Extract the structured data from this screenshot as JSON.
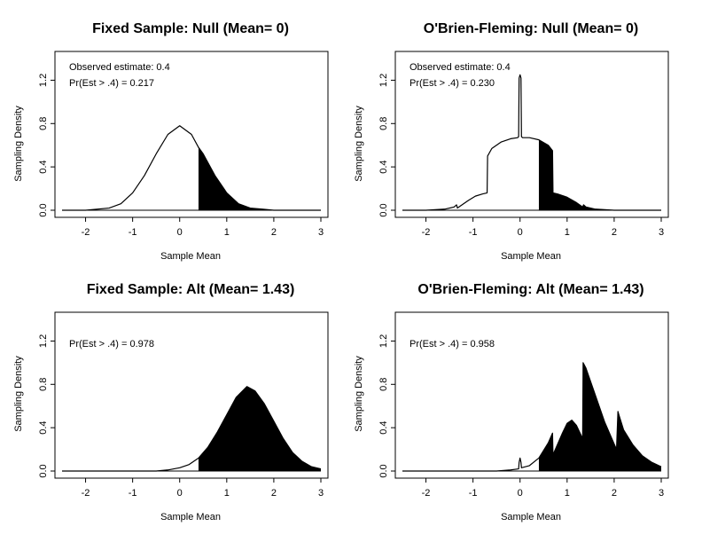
{
  "figure": {
    "background": "#ffffff",
    "ink": "#000000"
  },
  "chart_data": [
    {
      "type": "area",
      "title": "Fixed Sample: Null (Mean= 0)",
      "xlabel": "Sample Mean",
      "ylabel": "Sampling Density",
      "xlim": [
        -2.5,
        3
      ],
      "ylim": [
        0,
        1.4
      ],
      "xticks": [
        "-2",
        "-1",
        "0",
        "1",
        "2",
        "3"
      ],
      "xtick_values": [
        -2,
        -1,
        0,
        1,
        2,
        3
      ],
      "yticks": [
        "0.0",
        "0.4",
        "0.8",
        "1.2"
      ],
      "ytick_values": [
        0,
        0.4,
        0.8,
        1.2
      ],
      "annotations": [
        "Observed estimate: 0.4",
        "Pr(Est > .4) = 0.217"
      ],
      "shade_from": 0.4,
      "series": [
        {
          "name": "density",
          "x": [
            -2.5,
            -2.0,
            -1.5,
            -1.25,
            -1.0,
            -0.75,
            -0.5,
            -0.25,
            0,
            0.25,
            0.4,
            0.5,
            0.75,
            1.0,
            1.25,
            1.5,
            1.75,
            2.0,
            2.5,
            3.0
          ],
          "y": [
            0.0,
            0.0,
            0.02,
            0.06,
            0.16,
            0.32,
            0.52,
            0.7,
            0.78,
            0.7,
            0.58,
            0.52,
            0.32,
            0.16,
            0.06,
            0.02,
            0.01,
            0.0,
            0.0,
            0.0
          ]
        }
      ]
    },
    {
      "type": "area",
      "title": "O'Brien-Fleming: Null (Mean= 0)",
      "xlabel": "Sample Mean",
      "ylabel": "Sampling Density",
      "xlim": [
        -2.5,
        3
      ],
      "ylim": [
        0,
        1.4
      ],
      "xticks": [
        "-2",
        "-1",
        "0",
        "1",
        "2",
        "3"
      ],
      "xtick_values": [
        -2,
        -1,
        0,
        1,
        2,
        3
      ],
      "yticks": [
        "0.0",
        "0.4",
        "0.8",
        "1.2"
      ],
      "ytick_values": [
        0,
        0.4,
        0.8,
        1.2
      ],
      "annotations": [
        "Observed estimate: 0.4",
        "Pr(Est > .4) = 0.230"
      ],
      "shade_from": 0.4,
      "series": [
        {
          "name": "density",
          "x": [
            -2.5,
            -2.0,
            -1.6,
            -1.4,
            -1.35,
            -1.33,
            -1.3,
            -1.1,
            -0.95,
            -0.8,
            -0.7,
            -0.69,
            -0.6,
            -0.4,
            -0.2,
            -0.05,
            -0.03,
            -0.02,
            0.0,
            0.02,
            0.03,
            0.05,
            0.2,
            0.4,
            0.6,
            0.69,
            0.7,
            0.8,
            1.0,
            1.2,
            1.33,
            1.35,
            1.4,
            1.6,
            2.0,
            2.5,
            3.0
          ],
          "y": [
            0.0,
            0.0,
            0.01,
            0.03,
            0.05,
            0.02,
            0.03,
            0.09,
            0.13,
            0.15,
            0.16,
            0.5,
            0.57,
            0.63,
            0.66,
            0.67,
            0.68,
            1.22,
            1.25,
            1.22,
            0.68,
            0.67,
            0.67,
            0.65,
            0.6,
            0.55,
            0.16,
            0.15,
            0.12,
            0.07,
            0.03,
            0.05,
            0.03,
            0.01,
            0.0,
            0.0,
            0.0
          ]
        }
      ]
    },
    {
      "type": "area",
      "title": "Fixed Sample: Alt (Mean= 1.43)",
      "xlabel": "Sample Mean",
      "ylabel": "Sampling Density",
      "xlim": [
        -2.5,
        3
      ],
      "ylim": [
        0,
        1.4
      ],
      "xticks": [
        "-2",
        "-1",
        "0",
        "1",
        "2",
        "3"
      ],
      "xtick_values": [
        -2,
        -1,
        0,
        1,
        2,
        3
      ],
      "yticks": [
        "0.0",
        "0.4",
        "0.8",
        "1.2"
      ],
      "ytick_values": [
        0,
        0.4,
        0.8,
        1.2
      ],
      "annotations": [
        "Pr(Est > .4) = 0.978"
      ],
      "shade_from": 0.4,
      "series": [
        {
          "name": "density",
          "x": [
            -2.5,
            -1.0,
            -0.5,
            -0.25,
            0.0,
            0.2,
            0.4,
            0.6,
            0.8,
            1.0,
            1.2,
            1.43,
            1.6,
            1.8,
            2.0,
            2.2,
            2.4,
            2.6,
            2.8,
            3.0
          ],
          "y": [
            0.0,
            0.0,
            0.0,
            0.01,
            0.03,
            0.06,
            0.12,
            0.22,
            0.36,
            0.52,
            0.68,
            0.78,
            0.74,
            0.62,
            0.46,
            0.3,
            0.17,
            0.09,
            0.04,
            0.02
          ]
        }
      ]
    },
    {
      "type": "area",
      "title": "O'Brien-Fleming: Alt (Mean= 1.43)",
      "xlabel": "Sample Mean",
      "ylabel": "Sampling Density",
      "xlim": [
        -2.5,
        3
      ],
      "ylim": [
        0,
        1.4
      ],
      "xticks": [
        "-2",
        "-1",
        "0",
        "1",
        "2",
        "3"
      ],
      "xtick_values": [
        -2,
        -1,
        0,
        1,
        2,
        3
      ],
      "yticks": [
        "0.0",
        "0.4",
        "0.8",
        "1.2"
      ],
      "ytick_values": [
        0,
        0.4,
        0.8,
        1.2
      ],
      "annotations": [
        "Pr(Est > .4) = 0.958"
      ],
      "shade_from": 0.4,
      "series": [
        {
          "name": "density",
          "x": [
            -2.5,
            -1.0,
            -0.5,
            -0.2,
            -0.03,
            -0.02,
            0.0,
            0.02,
            0.03,
            0.2,
            0.4,
            0.6,
            0.69,
            0.7,
            0.8,
            0.9,
            1.0,
            1.1,
            1.2,
            1.33,
            1.34,
            1.4,
            1.6,
            1.8,
            2.0,
            2.05,
            2.08,
            2.1,
            2.2,
            2.4,
            2.6,
            2.8,
            3.0
          ],
          "y": [
            0.0,
            0.0,
            0.0,
            0.01,
            0.02,
            0.08,
            0.12,
            0.08,
            0.03,
            0.05,
            0.12,
            0.26,
            0.35,
            0.15,
            0.25,
            0.35,
            0.44,
            0.47,
            0.42,
            0.3,
            1.0,
            0.95,
            0.7,
            0.45,
            0.25,
            0.2,
            0.55,
            0.52,
            0.38,
            0.24,
            0.14,
            0.08,
            0.04
          ]
        }
      ]
    }
  ]
}
